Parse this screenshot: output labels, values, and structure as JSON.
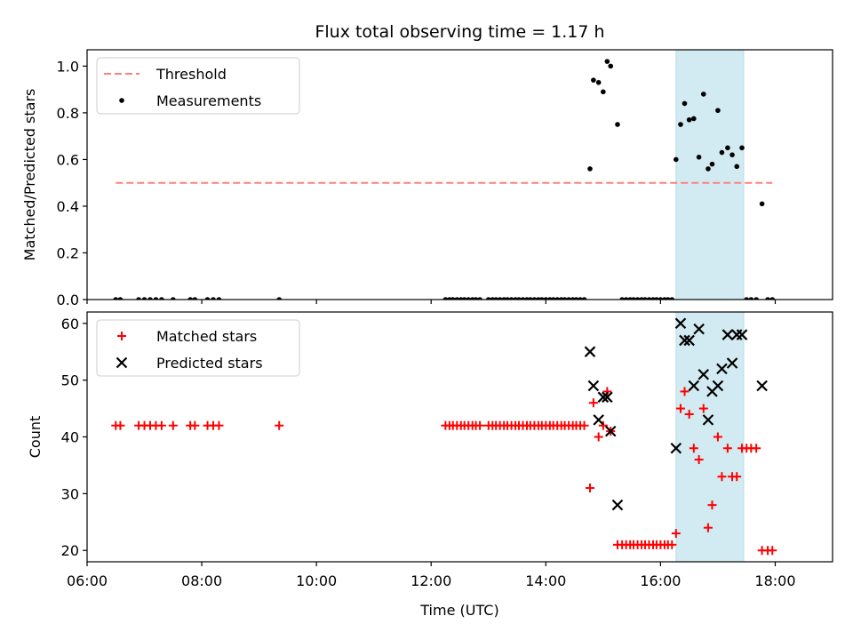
{
  "chart_data": [
    {
      "type": "scatter",
      "title": "Flux total observing time = 1.17 h",
      "xlabel": "",
      "ylabel": "Matched/Predicted stars",
      "xlim": [
        6.0,
        19.0
      ],
      "ylim": [
        0.0,
        1.07
      ],
      "yticks": [
        "0.0",
        "0.2",
        "0.4",
        "0.6",
        "0.8",
        "1.0"
      ],
      "highlight_span": {
        "x0": 16.27,
        "x1": 17.45,
        "color": "#add8e6"
      },
      "legend_position": "upper-left",
      "series": [
        {
          "name": "Threshold",
          "kind": "line",
          "style": "dashed",
          "color": "#ff7f7f",
          "x": [
            6.5,
            17.95
          ],
          "y": [
            0.5,
            0.5
          ]
        },
        {
          "name": "Measurements",
          "kind": "scatter",
          "marker": "dot",
          "color": "#000000",
          "x": [
            6.5,
            6.58,
            6.9,
            7.0,
            7.1,
            7.2,
            7.3,
            7.5,
            7.8,
            7.88,
            8.1,
            8.2,
            8.3,
            9.35,
            12.25,
            12.32,
            12.38,
            12.45,
            12.52,
            12.58,
            12.65,
            12.72,
            12.78,
            12.85,
            13.0,
            13.07,
            13.13,
            13.2,
            13.27,
            13.33,
            13.4,
            13.47,
            13.53,
            13.6,
            13.67,
            13.73,
            13.8,
            13.87,
            13.93,
            14.0,
            14.07,
            14.13,
            14.2,
            14.27,
            14.33,
            14.4,
            14.47,
            14.53,
            14.6,
            14.67,
            14.77,
            14.83,
            14.92,
            15.0,
            15.07,
            15.13,
            15.25,
            15.33,
            15.4,
            15.47,
            15.53,
            15.6,
            15.67,
            15.73,
            15.8,
            15.87,
            15.93,
            16.0,
            16.07,
            16.13,
            16.2,
            16.27,
            16.35,
            16.42,
            16.5,
            16.58,
            16.67,
            16.75,
            16.83,
            16.9,
            17.0,
            17.07,
            17.17,
            17.25,
            17.33,
            17.42,
            17.5,
            17.58,
            17.67,
            17.77,
            17.87,
            17.95
          ],
          "y": [
            0,
            0,
            0,
            0,
            0,
            0,
            0,
            0,
            0,
            0,
            0,
            0,
            0,
            0,
            0,
            0,
            0,
            0,
            0,
            0,
            0,
            0,
            0,
            0,
            0,
            0,
            0,
            0,
            0,
            0,
            0,
            0,
            0,
            0,
            0,
            0,
            0,
            0,
            0,
            0,
            0,
            0,
            0,
            0,
            0,
            0,
            0,
            0,
            0,
            0,
            0.56,
            0.94,
            0.93,
            0.89,
            1.02,
            1.0,
            0.75,
            0,
            0,
            0,
            0,
            0,
            0,
            0,
            0,
            0,
            0,
            0,
            0,
            0,
            0,
            0.6,
            0.75,
            0.84,
            0.77,
            0.775,
            0.61,
            0.88,
            0.56,
            0.58,
            0.81,
            0.63,
            0.65,
            0.62,
            0.57,
            0.65,
            0,
            0,
            0,
            0.41,
            0,
            0
          ]
        }
      ]
    },
    {
      "type": "scatter",
      "title": "",
      "xlabel": "Time (UTC)",
      "ylabel": "Count",
      "xlim": [
        6.0,
        19.0
      ],
      "ylim": [
        18.0,
        62.0
      ],
      "xticks": [
        "06:00",
        "08:00",
        "10:00",
        "12:00",
        "14:00",
        "16:00",
        "18:00"
      ],
      "yticks": [
        "20",
        "30",
        "40",
        "50",
        "60"
      ],
      "highlight_span": {
        "x0": 16.27,
        "x1": 17.45,
        "color": "#add8e6"
      },
      "legend_position": "upper-left",
      "series": [
        {
          "name": "Matched stars",
          "kind": "scatter",
          "marker": "plus",
          "color": "#ff0000",
          "x": [
            6.5,
            6.58,
            6.9,
            7.0,
            7.1,
            7.2,
            7.3,
            7.5,
            7.8,
            7.88,
            8.1,
            8.2,
            8.3,
            9.35,
            12.25,
            12.32,
            12.38,
            12.45,
            12.52,
            12.58,
            12.65,
            12.72,
            12.78,
            12.85,
            13.0,
            13.07,
            13.13,
            13.2,
            13.27,
            13.33,
            13.4,
            13.47,
            13.53,
            13.6,
            13.67,
            13.73,
            13.8,
            13.87,
            13.93,
            14.0,
            14.07,
            14.13,
            14.2,
            14.27,
            14.33,
            14.4,
            14.47,
            14.53,
            14.6,
            14.67,
            14.77,
            14.83,
            14.92,
            15.0,
            15.07,
            15.13,
            15.25,
            15.33,
            15.4,
            15.47,
            15.53,
            15.6,
            15.67,
            15.73,
            15.8,
            15.87,
            15.93,
            16.0,
            16.07,
            16.13,
            16.2,
            16.27,
            16.35,
            16.42,
            16.5,
            16.58,
            16.67,
            16.75,
            16.83,
            16.9,
            17.0,
            17.07,
            17.17,
            17.25,
            17.33,
            17.42,
            17.5,
            17.58,
            17.67,
            17.77,
            17.87,
            17.95
          ],
          "y": [
            42,
            42,
            42,
            42,
            42,
            42,
            42,
            42,
            42,
            42,
            42,
            42,
            42,
            42,
            42,
            42,
            42,
            42,
            42,
            42,
            42,
            42,
            42,
            42,
            42,
            42,
            42,
            42,
            42,
            42,
            42,
            42,
            42,
            42,
            42,
            42,
            42,
            42,
            42,
            42,
            42,
            42,
            42,
            42,
            42,
            42,
            42,
            42,
            42,
            42,
            31,
            46,
            40,
            42,
            48,
            41,
            21,
            21,
            21,
            21,
            21,
            21,
            21,
            21,
            21,
            21,
            21,
            21,
            21,
            21,
            21,
            23,
            45,
            48,
            44,
            38,
            36,
            45,
            24,
            28,
            40,
            33,
            38,
            33,
            33,
            38,
            38,
            38,
            38,
            20,
            20,
            20
          ]
        },
        {
          "name": "Predicted stars",
          "kind": "scatter",
          "marker": "x",
          "color": "#000000",
          "x": [
            14.77,
            14.83,
            14.92,
            15.0,
            15.07,
            15.13,
            15.25,
            16.27,
            16.35,
            16.42,
            16.5,
            16.58,
            16.67,
            16.75,
            16.83,
            16.9,
            17.0,
            17.07,
            17.17,
            17.25,
            17.33,
            17.42,
            17.77
          ],
          "y": [
            55,
            49,
            43,
            47,
            47,
            41,
            28,
            38,
            60,
            57,
            57,
            49,
            59,
            51,
            43,
            48,
            49,
            52,
            58,
            53,
            58,
            58,
            49
          ]
        }
      ]
    }
  ]
}
